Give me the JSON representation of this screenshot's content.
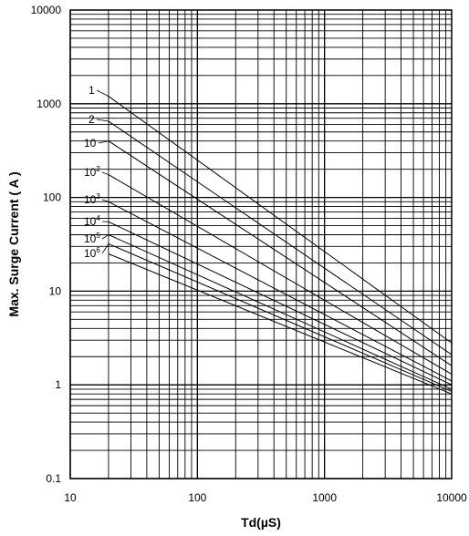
{
  "chart_data": {
    "type": "line",
    "title": "",
    "xlabel": "Td(µS)",
    "ylabel": "Max. Surge Current ( A )",
    "x_scale": "log",
    "y_scale": "log",
    "xlim": [
      10,
      10000
    ],
    "ylim": [
      0.1,
      10000
    ],
    "grid": true,
    "x_ticks": [
      "10",
      "100",
      "1000",
      "10000"
    ],
    "y_ticks": [
      "0.1",
      "1",
      "10",
      "100",
      "1000",
      "10000"
    ],
    "series": [
      {
        "name": "1",
        "label_base": "1",
        "label_exp": "",
        "x": [
          20,
          10000
        ],
        "y": [
          1200,
          2.8
        ]
      },
      {
        "name": "2",
        "label_base": "2",
        "label_exp": "",
        "x": [
          20,
          10000
        ],
        "y": [
          650,
          2.1
        ]
      },
      {
        "name": "10",
        "label_base": "10",
        "label_exp": "",
        "x": [
          20,
          10000
        ],
        "y": [
          400,
          1.6
        ]
      },
      {
        "name": "10^2",
        "label_base": "10",
        "label_exp": "2",
        "x": [
          20,
          10000
        ],
        "y": [
          175,
          1.3
        ]
      },
      {
        "name": "10^3",
        "label_base": "10",
        "label_exp": "3",
        "x": [
          20,
          10000
        ],
        "y": [
          90,
          1.1
        ]
      },
      {
        "name": "10^4",
        "label_base": "10",
        "label_exp": "4",
        "x": [
          20,
          10000
        ],
        "y": [
          55,
          1.0
        ]
      },
      {
        "name": "10^5",
        "label_base": "10",
        "label_exp": "5",
        "x": [
          20,
          10000
        ],
        "y": [
          40,
          0.9
        ]
      },
      {
        "name": "10^6",
        "label_base": "10",
        "label_exp": "6",
        "x": [
          20,
          10000
        ],
        "y": [
          32,
          0.85
        ]
      },
      {
        "name": "",
        "label_base": "",
        "label_exp": "",
        "x": [
          20,
          10000
        ],
        "y": [
          25,
          0.8
        ]
      }
    ]
  }
}
